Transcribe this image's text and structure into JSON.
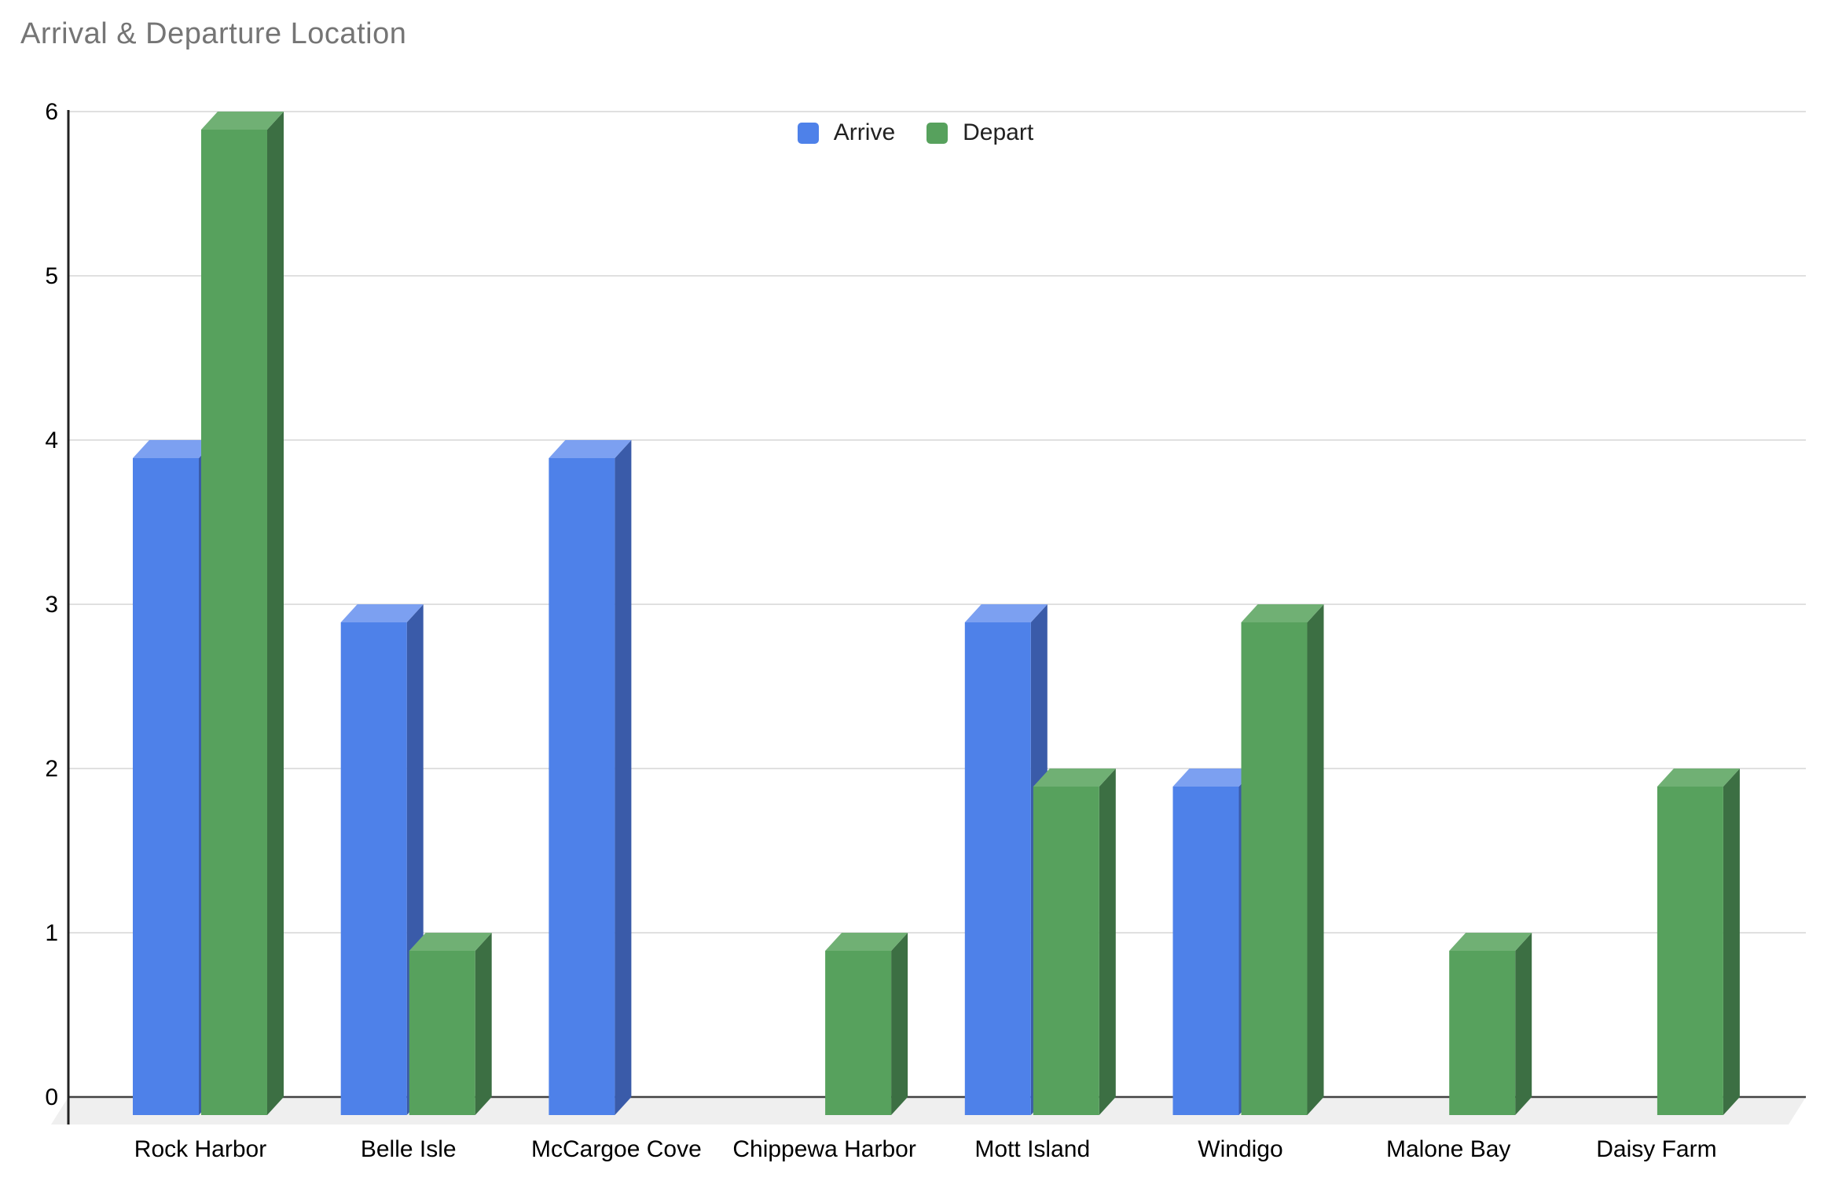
{
  "title": "Arrival & Departure Location",
  "chart_data": {
    "type": "bar",
    "style": "3d-column",
    "title": "Arrival & Departure Location",
    "categories": [
      "Rock Harbor",
      "Belle Isle",
      "McCargoe Cove",
      "Chippewa Harbor",
      "Mott Island",
      "Windigo",
      "Malone Bay",
      "Daisy Farm"
    ],
    "series": [
      {
        "name": "Arrive",
        "values": [
          4,
          3,
          4,
          0,
          3,
          2,
          0,
          0
        ],
        "color": "#4E81E9"
      },
      {
        "name": "Depart",
        "values": [
          6,
          1,
          0,
          1,
          2,
          3,
          1,
          2
        ],
        "color": "#57A15D"
      }
    ],
    "xlabel": "",
    "ylabel": "",
    "ylim": [
      0,
      6
    ],
    "yticks": [
      0,
      1,
      2,
      3,
      4,
      5,
      6
    ],
    "grid": true,
    "legend_position": "top-center"
  },
  "colors": {
    "series_shades": [
      {
        "front": "#4E81E9",
        "top": "#7CA0F1",
        "side": "#3A5BA9"
      },
      {
        "front": "#57A15D",
        "top": "#70B074",
        "side": "#3C6F43"
      }
    ],
    "gridline": "#E0E0E0",
    "baseline": "#424242",
    "y_axis": "#212121",
    "floor": "#EFEFEF",
    "title_text": "#757575",
    "label_text": "#000000"
  }
}
